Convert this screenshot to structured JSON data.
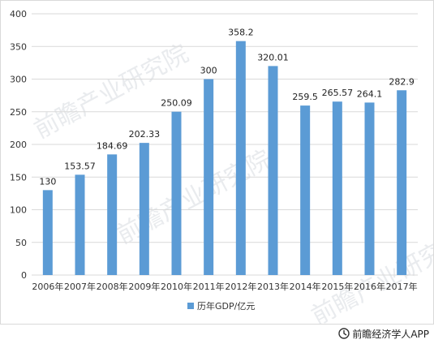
{
  "chart_data": {
    "type": "bar",
    "categories": [
      "2006年",
      "2007年",
      "2008年",
      "2009年",
      "2010年",
      "2011年",
      "2012年",
      "2013年",
      "2014年",
      "2015年",
      "2016年",
      "2017年"
    ],
    "series": [
      {
        "name": "历年GDP/亿元",
        "values": [
          130,
          153.57,
          184.69,
          202.33,
          250.09,
          300,
          358.2,
          320.01,
          259.5,
          265.57,
          264.1,
          282.9
        ],
        "labels": [
          "130",
          "153.57",
          "184.69",
          "202.33",
          "250.09",
          "300",
          "358.2",
          "320.01",
          "259.5",
          "265.57",
          "264.1",
          "282.9"
        ],
        "color": "#5b9bd5"
      }
    ],
    "ylim": [
      0,
      400
    ],
    "yticks": [
      0,
      50,
      100,
      150,
      200,
      250,
      300,
      350,
      400
    ],
    "grid": true,
    "legend_position": "bottom"
  },
  "watermark": {
    "text": "前瞻产业研究院"
  },
  "footer": {
    "icon": "qianzhan-logo-icon",
    "text": "前瞻经济学人APP"
  }
}
